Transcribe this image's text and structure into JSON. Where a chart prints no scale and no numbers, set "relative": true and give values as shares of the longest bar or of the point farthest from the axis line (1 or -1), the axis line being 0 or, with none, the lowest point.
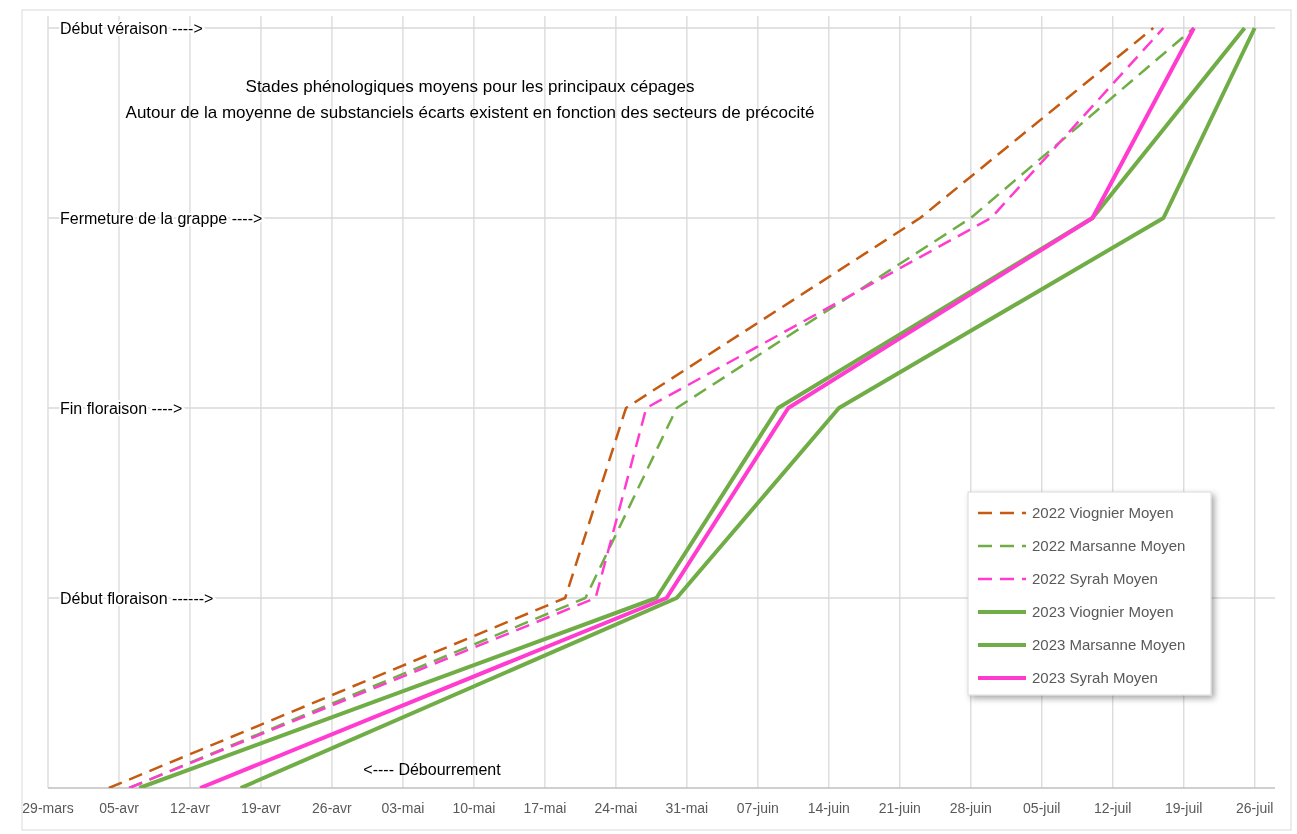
{
  "chart_data": {
    "type": "line",
    "relative": true,
    "annotations": [
      "Stades phénologiques moyens pour les principaux cépages",
      "Autour de la moyenne de substanciels écarts existent en fonction des secteurs de précocité",
      "<---- Débourrement",
      "Début véraison ---->"
    ],
    "xlim": [
      "--03-29",
      "--07-28"
    ],
    "xticks": [
      {
        "value": "--03-29",
        "label": "29-mars"
      },
      {
        "value": "--04-05",
        "label": "05-avr"
      },
      {
        "value": "--04-12",
        "label": "12-avr"
      },
      {
        "value": "--04-19",
        "label": "19-avr"
      },
      {
        "value": "--04-26",
        "label": "26-avr"
      },
      {
        "value": "--05-03",
        "label": "03-mai"
      },
      {
        "value": "--05-10",
        "label": "10-mai"
      },
      {
        "value": "--05-17",
        "label": "17-mai"
      },
      {
        "value": "--05-24",
        "label": "24-mai"
      },
      {
        "value": "--05-31",
        "label": "31-mai"
      },
      {
        "value": "--06-07",
        "label": "07-juin"
      },
      {
        "value": "--06-14",
        "label": "14-juin"
      },
      {
        "value": "--06-21",
        "label": "21-juin"
      },
      {
        "value": "--06-28",
        "label": "28-juin"
      },
      {
        "value": "--07-05",
        "label": "05-juil"
      },
      {
        "value": "--07-12",
        "label": "12-juil"
      },
      {
        "value": "--07-19",
        "label": "19-juil"
      },
      {
        "value": "--07-26",
        "label": "26-juil"
      }
    ],
    "ref_lines": [
      {
        "axis": "y",
        "value": 0.25,
        "label": "Début floraison ------>",
        "color": "#d9d9d9"
      },
      {
        "axis": "y",
        "value": 0.5,
        "label": "Fin floraison ---->",
        "color": "#d9d9d9"
      },
      {
        "axis": "y",
        "value": 0.75,
        "label": "Fermeture de la grappe ---->",
        "color": "#d9d9d9"
      }
    ],
    "grid": "x",
    "legend": "right",
    "series": [
      {
        "name": "2022 Viognier Moyen",
        "color": "#c55a11",
        "line_style": "dashed",
        "x": [
          "--04-04",
          "--05-19",
          "--05-25",
          "--06-23",
          "--07-16"
        ],
        "values": [
          0,
          0.25,
          0.5,
          0.75,
          1
        ]
      },
      {
        "name": "2022 Marsanne Moyen",
        "color": "#70ad47",
        "line_style": "dashed",
        "x": [
          "--04-06",
          "--05-21",
          "--05-30",
          "--06-28",
          "--07-20"
        ],
        "values": [
          0,
          0.25,
          0.5,
          0.75,
          1
        ]
      },
      {
        "name": "2022 Syrah Moyen",
        "color": "#ff3ccf",
        "line_style": "dashed",
        "x": [
          "--04-06",
          "--05-22",
          "--05-27",
          "--06-30",
          "--07-17"
        ],
        "values": [
          0,
          0.25,
          0.5,
          0.75,
          1
        ]
      },
      {
        "name": "2023 Viognier Moyen",
        "color": "#70ad47",
        "line_style": "solid",
        "x": [
          "--04-07",
          "--05-28",
          "--06-09",
          "--07-10",
          "--07-25"
        ],
        "values": [
          0,
          0.25,
          0.5,
          0.75,
          1
        ]
      },
      {
        "name": "2023 Marsanne Moyen",
        "color": "#70ad47",
        "line_style": "solid",
        "x": [
          "--04-17",
          "--05-30",
          "--06-15",
          "--07-17",
          "--07-26"
        ],
        "values": [
          0,
          0.25,
          0.5,
          0.75,
          1
        ]
      },
      {
        "name": "2023 Syrah Moyen",
        "color": "#ff3ccf",
        "line_style": "solid",
        "x": [
          "--04-13",
          "--05-29",
          "--06-10",
          "--07-10",
          "--07-20"
        ],
        "values": [
          0,
          0.25,
          0.5,
          0.75,
          1
        ]
      }
    ]
  }
}
